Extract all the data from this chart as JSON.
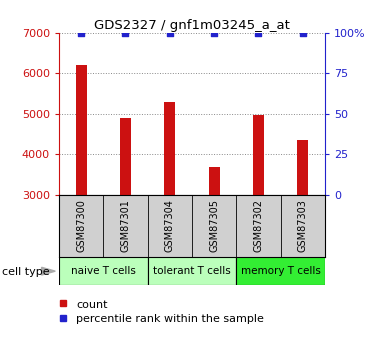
{
  "title": "GDS2327 / gnf1m03245_a_at",
  "samples": [
    "GSM87300",
    "GSM87301",
    "GSM87304",
    "GSM87305",
    "GSM87302",
    "GSM87303"
  ],
  "counts": [
    6200,
    4900,
    5300,
    3700,
    4980,
    4350
  ],
  "percentile_values": [
    7000,
    7000,
    7000,
    7000,
    7000,
    7000
  ],
  "ylim_left": [
    3000,
    7000
  ],
  "ylim_right": [
    0,
    100
  ],
  "yticks_left": [
    3000,
    4000,
    5000,
    6000,
    7000
  ],
  "yticks_right": [
    0,
    25,
    50,
    75,
    100
  ],
  "bar_color": "#cc1111",
  "dot_color": "#2222cc",
  "background_color": "#ffffff",
  "sample_box_color": "#d0d0d0",
  "cell_groups": [
    {
      "label": "naive T cells",
      "color": "#bbffbb",
      "n": 2
    },
    {
      "label": "tolerant T cells",
      "color": "#bbffbb",
      "n": 2
    },
    {
      "label": "memory T cells",
      "color": "#33ee33",
      "n": 2
    }
  ],
  "cell_type_label": "cell type",
  "legend_count_label": "count",
  "legend_pct_label": "percentile rank within the sample",
  "bar_width": 0.25
}
